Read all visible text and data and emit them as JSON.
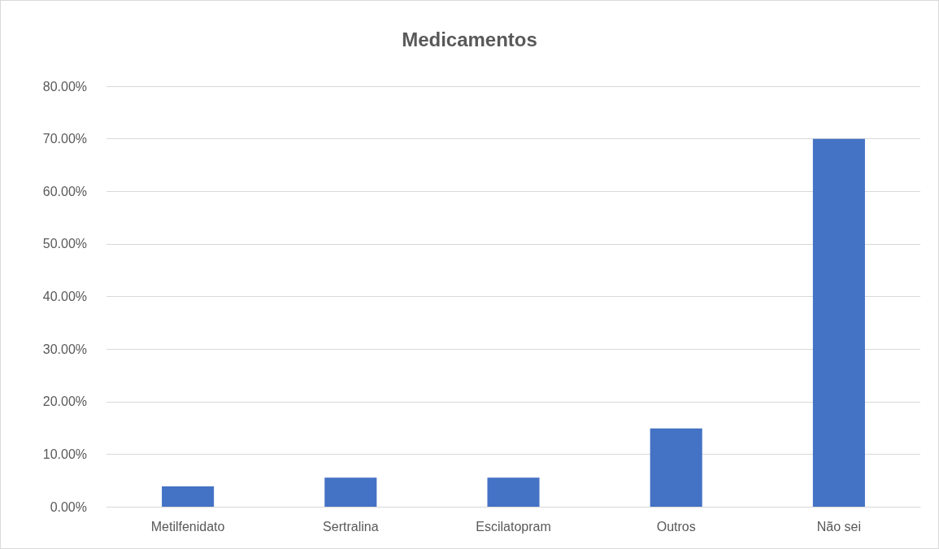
{
  "chart_data": {
    "type": "bar",
    "title": "Medicamentos",
    "categories": [
      "Metilfenidato",
      "Sertralina",
      "Escilatopram",
      "Outros",
      "Não sei"
    ],
    "values": [
      3.85,
      5.55,
      5.55,
      14.9,
      70
    ],
    "color": "#4472c4",
    "ylim": [
      0,
      80
    ],
    "yticks": [
      {
        "value": 0,
        "label": "0.00%"
      },
      {
        "value": 10,
        "label": "10.00%"
      },
      {
        "value": 20,
        "label": "20.00%"
      },
      {
        "value": 30,
        "label": "30.00%"
      },
      {
        "value": 40,
        "label": "40.00%"
      },
      {
        "value": 50,
        "label": "50.00%"
      },
      {
        "value": 60,
        "label": "60.00%"
      },
      {
        "value": 70,
        "label": "70.00%"
      },
      {
        "value": 80,
        "label": "80.00%"
      }
    ],
    "grid": true
  }
}
